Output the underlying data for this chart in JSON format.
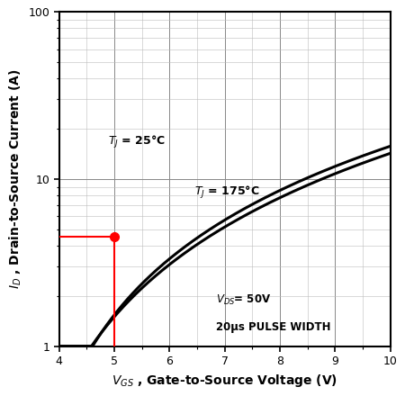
{
  "xlabel": "$V_{GS}$ , Gate-to-Source Voltage (V)",
  "ylabel": "$I_D$ , Drain-to-Source Current (A)",
  "xlim": [
    4,
    10
  ],
  "ylim": [
    1,
    100
  ],
  "xticks": [
    4,
    5,
    6,
    7,
    8,
    9,
    10
  ],
  "annotation_line1": "$V_{DS}$= 50V",
  "annotation_line2": "20μs PULSE WIDTH",
  "label_25": "$T_J$ = 25°C",
  "label_175": "$T_J$ = 175°C",
  "marker_x": 5.0,
  "marker_y": 4.5,
  "background_color": "#ffffff",
  "curve_color": "#000000",
  "marker_color": "#ff0000",
  "crosshair_color": "#ff0000",
  "grid_major_color": "#888888",
  "grid_minor_color": "#bbbbbb"
}
